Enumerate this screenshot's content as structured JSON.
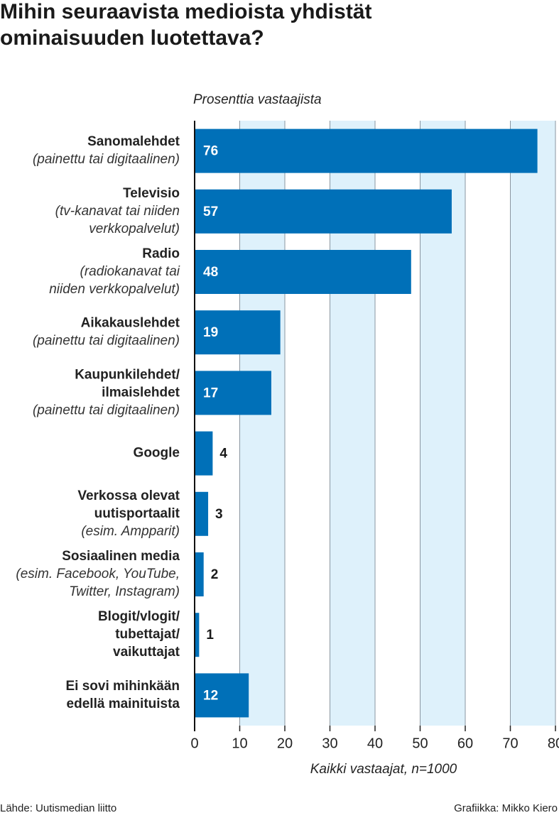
{
  "chart_data": {
    "type": "bar",
    "orientation": "horizontal",
    "title": [
      "Mihin seuraavista medioista yhdistät",
      "ominaisuuden luotettava?"
    ],
    "subtitle": "Prosenttia vastaajista",
    "x_label": "Kaikki vastaajat, n=1000",
    "source": "Lähde: Uutismedian liitto",
    "credit": "Grafiikka: Mikko Kiero",
    "categories": [
      [
        "Sanomalehdet"
      ],
      [
        "Televisio"
      ],
      [
        "Radio"
      ],
      [
        "Aikakauslehdet"
      ],
      [
        "Kaupunkilehdet/",
        "ilmaislehdet"
      ],
      [
        "Google"
      ],
      [
        "Verkossa olevat",
        "uutisportaalit"
      ],
      [
        "Sosiaalinen media"
      ],
      [
        "Blogit/vlogit/",
        "tubettajat/",
        "vaikuttajat"
      ],
      [
        "Ei sovi mihinkään",
        "edellä mainituista"
      ]
    ],
    "category_notes": [
      [
        "(painettu tai digitaalinen)"
      ],
      [
        "(tv-kanavat tai niiden",
        "verkkopalvelut)"
      ],
      [
        "(radiokanavat tai",
        "niiden verkkopalvelut)"
      ],
      [
        "(painettu tai digitaalinen)"
      ],
      [
        "(painettu tai digitaalinen)"
      ],
      null,
      [
        "(esim. Ampparit)"
      ],
      [
        "(esim. Facebook, YouTube,",
        "Twitter, Instagram)"
      ],
      null,
      null
    ],
    "values": [
      76,
      57,
      48,
      19,
      17,
      4,
      3,
      2,
      1,
      12
    ],
    "color": "#0070b8",
    "xlim": [
      0,
      80
    ],
    "xticks": [
      0,
      10,
      20,
      30,
      40,
      50,
      60,
      70,
      80
    ],
    "grid": true,
    "shaded_bands": true,
    "band_color": "#def1fb"
  }
}
